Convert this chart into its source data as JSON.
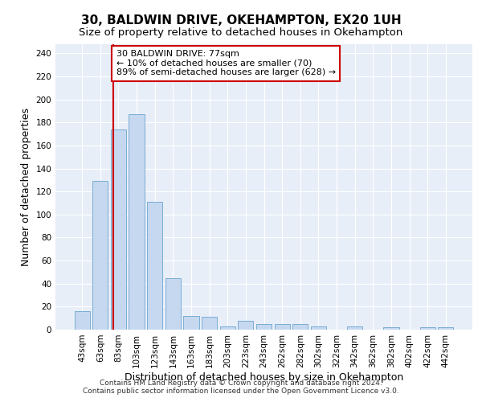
{
  "title1": "30, BALDWIN DRIVE, OKEHAMPTON, EX20 1UH",
  "title2": "Size of property relative to detached houses in Okehampton",
  "xlabel": "Distribution of detached houses by size in Okehampton",
  "ylabel": "Number of detached properties",
  "bin_labels": [
    "43sqm",
    "63sqm",
    "83sqm",
    "103sqm",
    "123sqm",
    "143sqm",
    "163sqm",
    "183sqm",
    "203sqm",
    "223sqm",
    "243sqm",
    "262sqm",
    "282sqm",
    "302sqm",
    "322sqm",
    "342sqm",
    "362sqm",
    "382sqm",
    "402sqm",
    "422sqm",
    "442sqm"
  ],
  "bar_values": [
    16,
    129,
    174,
    187,
    111,
    45,
    12,
    11,
    3,
    8,
    5,
    5,
    5,
    3,
    0,
    3,
    0,
    2,
    0,
    2,
    2
  ],
  "bar_color": "#c5d8f0",
  "bar_edge_color": "#7aadd4",
  "vline_color": "#cc0000",
  "vline_x": 1.7,
  "annotation_text": "30 BALDWIN DRIVE: 77sqm\n← 10% of detached houses are smaller (70)\n89% of semi-detached houses are larger (628) →",
  "annotation_box_color": "white",
  "annotation_box_edge": "#cc0000",
  "ylim": [
    0,
    248
  ],
  "yticks": [
    0,
    20,
    40,
    60,
    80,
    100,
    120,
    140,
    160,
    180,
    200,
    220,
    240
  ],
  "background_color": "#e8eef8",
  "footer1": "Contains HM Land Registry data © Crown copyright and database right 2024.",
  "footer2": "Contains public sector information licensed under the Open Government Licence v3.0.",
  "title1_fontsize": 11,
  "title2_fontsize": 9.5,
  "xlabel_fontsize": 9,
  "ylabel_fontsize": 9,
  "tick_fontsize": 7.5,
  "annotation_fontsize": 8,
  "footer_fontsize": 6.5
}
